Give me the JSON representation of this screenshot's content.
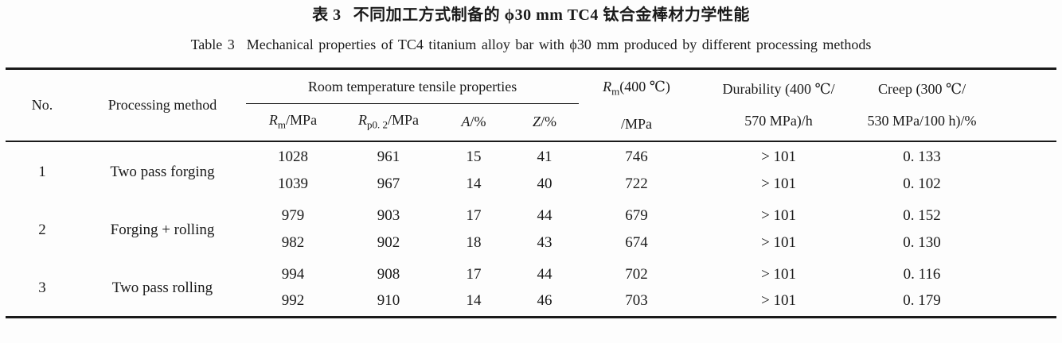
{
  "colors": {
    "text": "#1a1a1a",
    "rule": "#1a1a1a",
    "background": "#fdfdfd"
  },
  "title": {
    "zh_label": "表 3",
    "zh_text": "不同加工方式制备的 ϕ30 mm TC4 钛合金棒材力学性能",
    "en_label": "Table 3",
    "en_text": "Mechanical properties of TC4 titanium alloy bar with ϕ30 mm produced by different processing methods"
  },
  "table": {
    "columns": {
      "no": "No.",
      "method": "Processing method",
      "rt_group": "Room temperature tensile properties",
      "rm": {
        "base": "R",
        "sub": "m",
        "rest": "/MPa"
      },
      "rp02": {
        "base": "R",
        "sub": "p0. 2",
        "rest": "/MPa"
      },
      "a": {
        "base": "A",
        "rest": "/%"
      },
      "z": {
        "base": "Z",
        "rest": "/%"
      },
      "rm400": {
        "base": "R",
        "sub": "m",
        "rest": "(400 ℃)",
        "line2": "/MPa"
      },
      "durability": {
        "line1": "Durability (400 ℃/",
        "line2": "570 MPa)/h"
      },
      "creep": {
        "line1": "Creep (300 ℃/",
        "line2": "530 MPa/100 h)/%"
      }
    },
    "rows": [
      {
        "no": "1",
        "method": "Two pass forging",
        "sub": [
          {
            "rm": "1028",
            "rp02": "961",
            "a": "15",
            "z": "41",
            "rm400": "746",
            "durability": "> 101",
            "creep": "0. 133"
          },
          {
            "rm": "1039",
            "rp02": "967",
            "a": "14",
            "z": "40",
            "rm400": "722",
            "durability": "> 101",
            "creep": "0. 102"
          }
        ]
      },
      {
        "no": "2",
        "method": "Forging + rolling",
        "sub": [
          {
            "rm": "979",
            "rp02": "903",
            "a": "17",
            "z": "44",
            "rm400": "679",
            "durability": "> 101",
            "creep": "0. 152"
          },
          {
            "rm": "982",
            "rp02": "902",
            "a": "18",
            "z": "43",
            "rm400": "674",
            "durability": "> 101",
            "creep": "0. 130"
          }
        ]
      },
      {
        "no": "3",
        "method": "Two pass rolling",
        "sub": [
          {
            "rm": "994",
            "rp02": "908",
            "a": "17",
            "z": "44",
            "rm400": "702",
            "durability": "> 101",
            "creep": "0. 116"
          },
          {
            "rm": "992",
            "rp02": "910",
            "a": "14",
            "z": "46",
            "rm400": "703",
            "durability": "> 101",
            "creep": "0. 179"
          }
        ]
      }
    ]
  }
}
